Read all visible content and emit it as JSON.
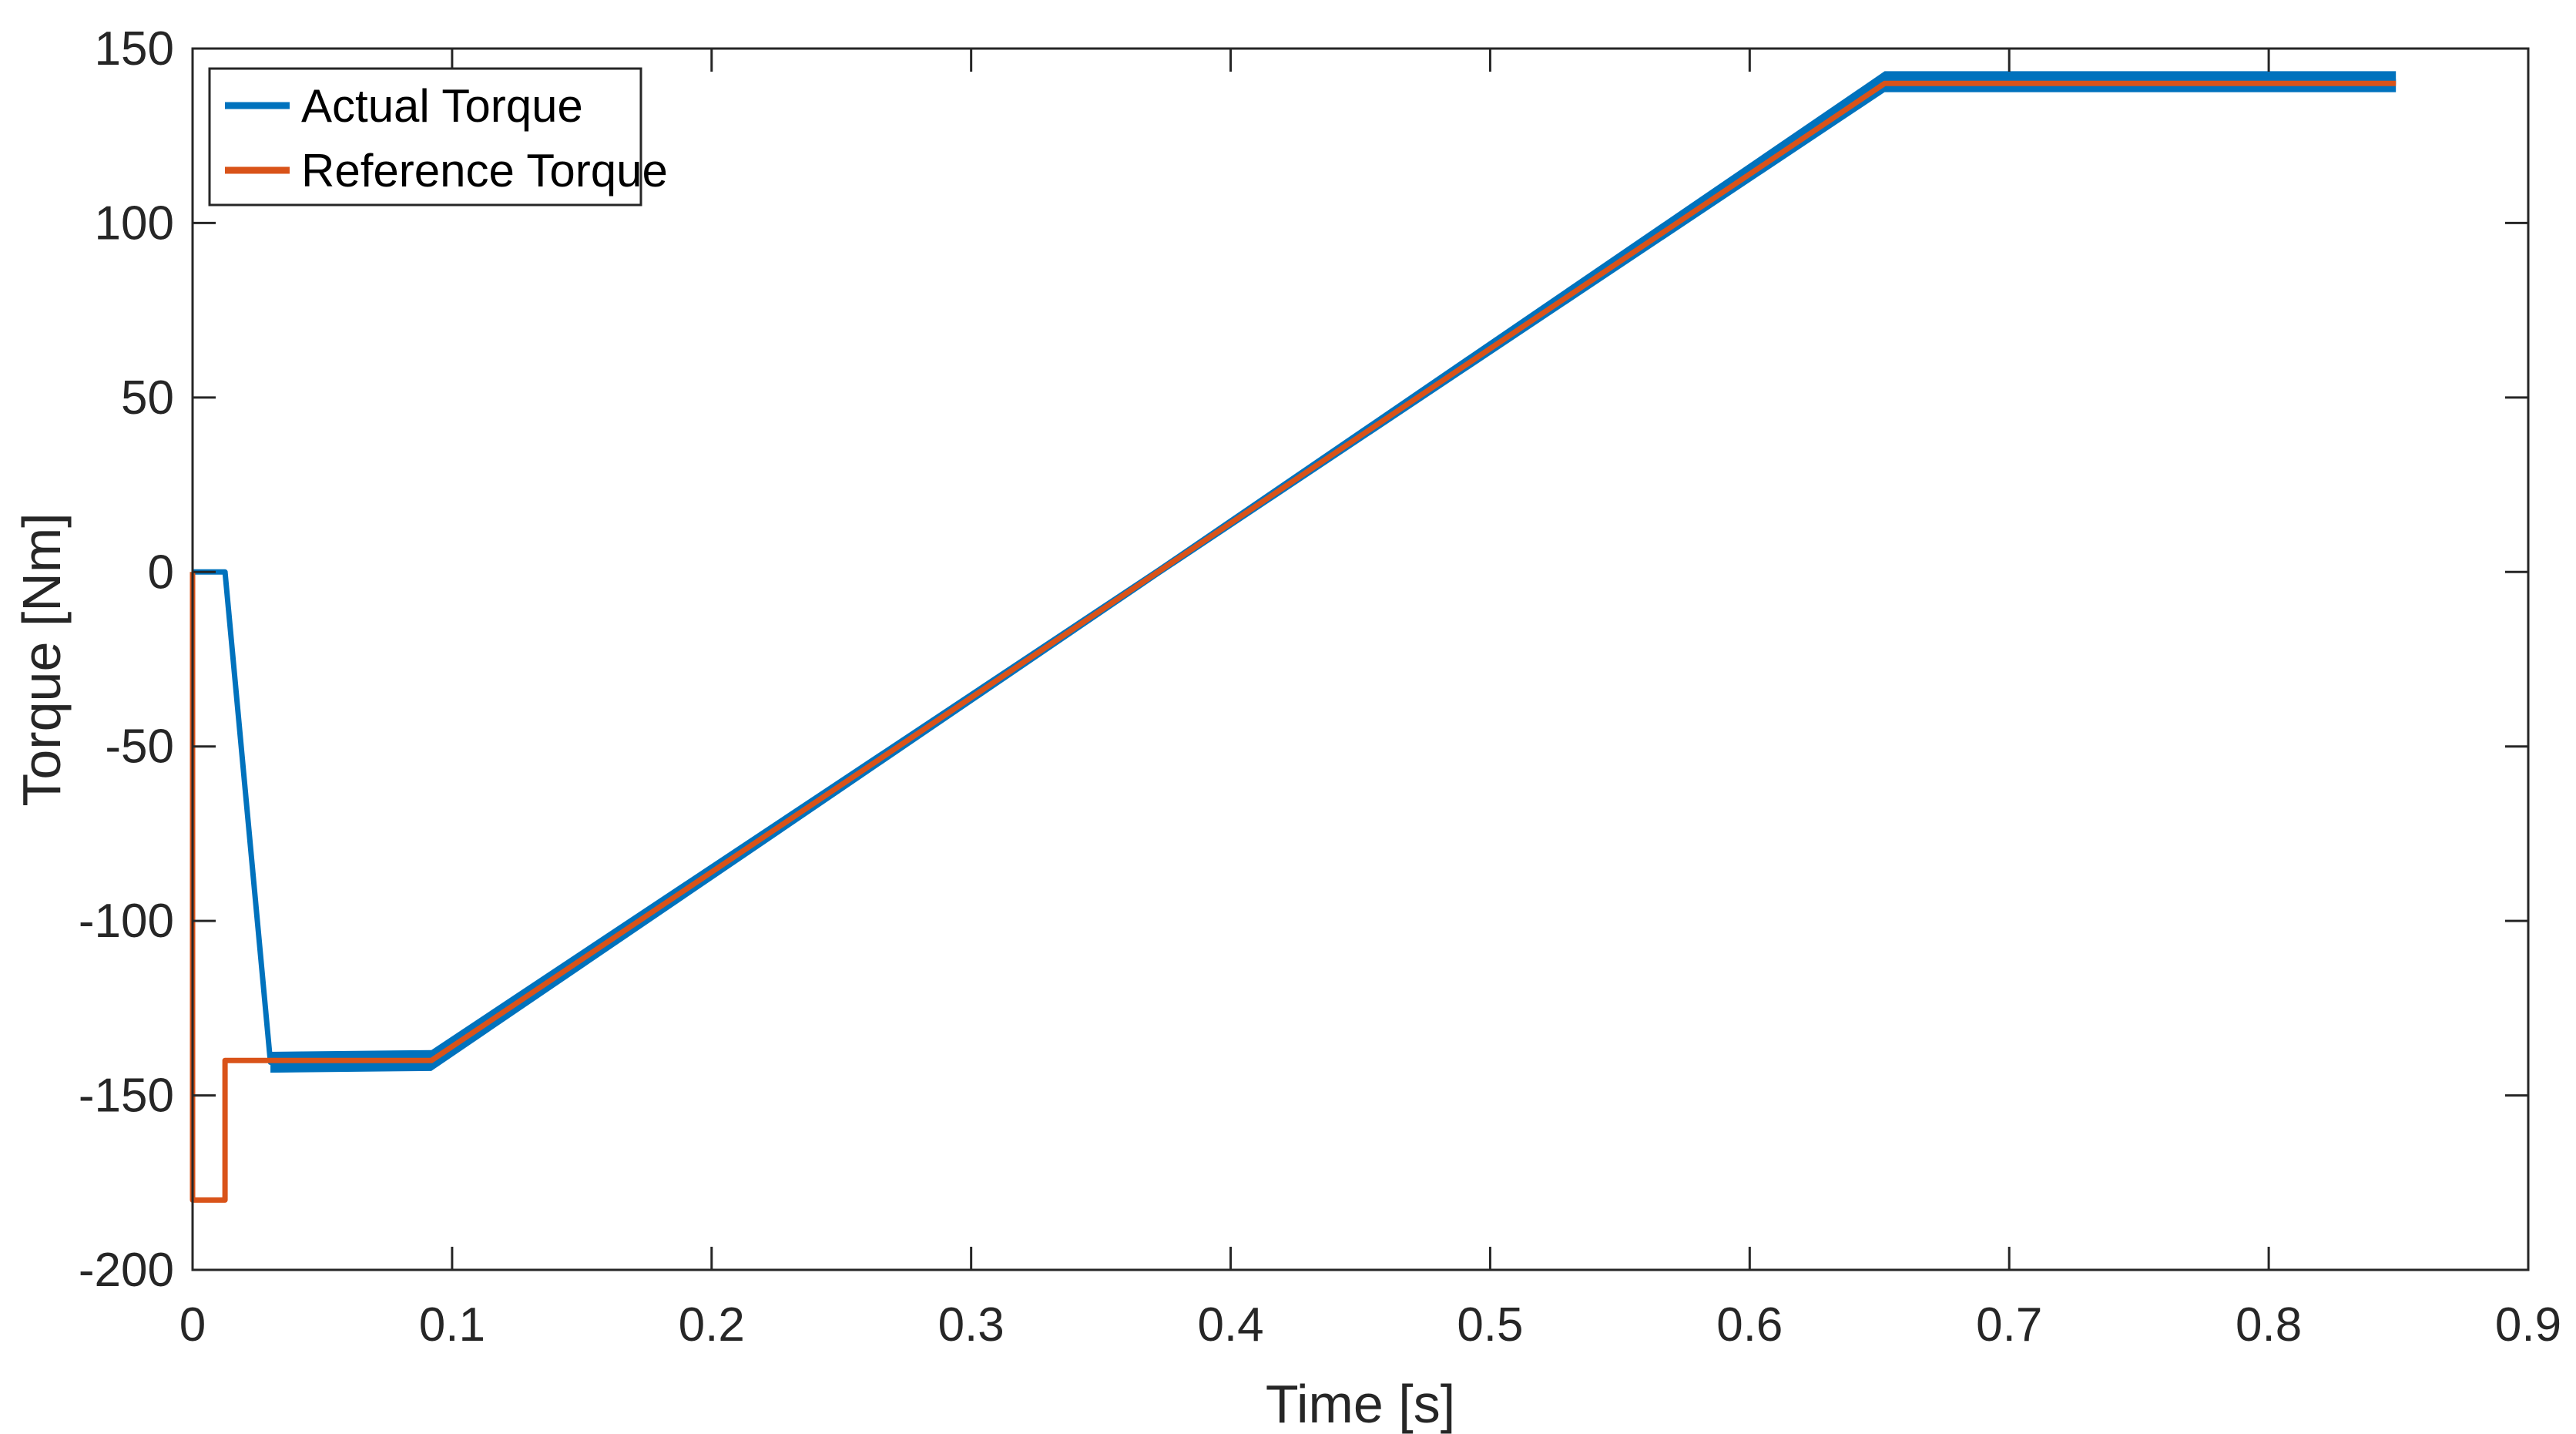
{
  "figure": {
    "background": "#FFFFFF"
  },
  "legend": {
    "position": "top-left",
    "items": [
      {
        "label": "Actual Torque",
        "color": "#0072BD"
      },
      {
        "label": "Reference Torque",
        "color": "#D95319"
      }
    ]
  },
  "chart_data": {
    "type": "line",
    "title": "",
    "xlabel": "Time [s]",
    "ylabel": "Torque [Nm]",
    "xlim": [
      0,
      0.9
    ],
    "ylim": [
      -200,
      150
    ],
    "grid": false,
    "legend_position": "top-left",
    "axis_color": "#262626",
    "background_color": "#FFFFFF",
    "x_ticks": [
      {
        "value": 0,
        "label": "0"
      },
      {
        "value": 0.1,
        "label": "0.1"
      },
      {
        "value": 0.2,
        "label": "0.2"
      },
      {
        "value": 0.3,
        "label": "0.3"
      },
      {
        "value": 0.4,
        "label": "0.4"
      },
      {
        "value": 0.5,
        "label": "0.5"
      },
      {
        "value": 0.6,
        "label": "0.6"
      },
      {
        "value": 0.7,
        "label": "0.7"
      },
      {
        "value": 0.8,
        "label": "0.8"
      },
      {
        "value": 0.9,
        "label": "0.9"
      }
    ],
    "y_ticks": [
      {
        "value": 150,
        "label": "150"
      },
      {
        "value": 100,
        "label": "100"
      },
      {
        "value": 50,
        "label": "50"
      },
      {
        "value": 0,
        "label": "0"
      },
      {
        "value": -50,
        "label": "-50"
      },
      {
        "value": -100,
        "label": "-100"
      },
      {
        "value": -150,
        "label": "-150"
      },
      {
        "value": -200,
        "label": "-200"
      }
    ],
    "series": [
      {
        "name": "Actual Torque",
        "color": "#0072BD",
        "style": "line-with-ripple-band",
        "points": [
          [
            0,
            0
          ],
          [
            0.0125,
            0
          ],
          [
            0.03,
            -140.5
          ],
          [
            0.092,
            -140
          ],
          [
            0.372,
            0
          ],
          [
            0.652,
            140.5
          ],
          [
            0.849,
            140.5
          ]
        ],
        "ripple_band": [
          [
            0.03,
            -140.5,
            3.0
          ],
          [
            0.092,
            -140.0,
            3.0
          ],
          [
            0.372,
            0.0,
            1.3
          ],
          [
            0.652,
            140.5,
            3.0
          ],
          [
            0.849,
            140.5,
            3.0
          ]
        ]
      },
      {
        "name": "Reference Torque",
        "color": "#D95319",
        "style": "line",
        "points": [
          [
            0,
            0
          ],
          [
            0,
            -180
          ],
          [
            0.0125,
            -180
          ],
          [
            0.0125,
            -140
          ],
          [
            0.092,
            -140
          ],
          [
            0.652,
            140
          ],
          [
            0.849,
            140
          ]
        ]
      }
    ]
  }
}
